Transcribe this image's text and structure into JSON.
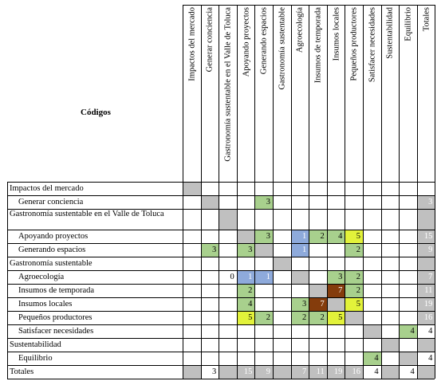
{
  "title": "Códigos",
  "columns": [
    "Impactos del mercado",
    "Generar conciencia",
    "Gastronomía sustentable en el Valle de Toluca",
    "Apoyando proyectos",
    "Generando espacios",
    "Gastronomía sustentable",
    "Agroecología",
    "Insumos de temporada",
    "Insumos locales",
    "Pequeños productores",
    "Satisfacer necesidades",
    "Sustentabilidad",
    "Equilibrio",
    "Totales"
  ],
  "rows": [
    {
      "label": "Impactos del mercado",
      "indent": false
    },
    {
      "label": "Generar conciencia",
      "indent": true
    },
    {
      "label": "Gastronomía sustentable en el Valle de Toluca",
      "indent": false
    },
    {
      "label": "Apoyando proyectos",
      "indent": true
    },
    {
      "label": "Generando espacios",
      "indent": true
    },
    {
      "label": "Gastronomía sustentable",
      "indent": false
    },
    {
      "label": "Agroecología",
      "indent": true
    },
    {
      "label": "Insumos de temporada",
      "indent": true
    },
    {
      "label": "Insumos locales",
      "indent": true
    },
    {
      "label": "Pequeños productores",
      "indent": true
    },
    {
      "label": "Satisfacer necesidades",
      "indent": true
    },
    {
      "label": "Sustentabilidad",
      "indent": false
    },
    {
      "label": "Equilibrio",
      "indent": true
    },
    {
      "label": "Totales",
      "indent": false
    }
  ],
  "colors": {
    "gray": "#c0c0c0",
    "green": "#a8d08d",
    "blue": "#8eaadb",
    "yellow": "#e2f23a",
    "brown": "#843c0c"
  },
  "cells": [
    {
      "r": 0,
      "c": 0,
      "v": "",
      "color": "gray"
    },
    {
      "r": 1,
      "c": 1,
      "v": "",
      "color": "gray"
    },
    {
      "r": 1,
      "c": 4,
      "v": "3",
      "color": "green"
    },
    {
      "r": 1,
      "c": 13,
      "v": "3",
      "color": "gray"
    },
    {
      "r": 2,
      "c": 2,
      "v": "",
      "color": "gray"
    },
    {
      "r": 2,
      "c": 13,
      "v": "",
      "color": "gray"
    },
    {
      "r": 3,
      "c": 3,
      "v": "",
      "color": "gray"
    },
    {
      "r": 3,
      "c": 4,
      "v": "3",
      "color": "green"
    },
    {
      "r": 3,
      "c": 6,
      "v": "1",
      "color": "blue"
    },
    {
      "r": 3,
      "c": 7,
      "v": "2",
      "color": "green"
    },
    {
      "r": 3,
      "c": 8,
      "v": "4",
      "color": "green"
    },
    {
      "r": 3,
      "c": 9,
      "v": "5",
      "color": "yellow"
    },
    {
      "r": 3,
      "c": 13,
      "v": "15",
      "color": "gray"
    },
    {
      "r": 4,
      "c": 1,
      "v": "3",
      "color": "green"
    },
    {
      "r": 4,
      "c": 3,
      "v": "3",
      "color": "green"
    },
    {
      "r": 4,
      "c": 4,
      "v": "",
      "color": "gray"
    },
    {
      "r": 4,
      "c": 6,
      "v": "1",
      "color": "blue"
    },
    {
      "r": 4,
      "c": 9,
      "v": "2",
      "color": "green"
    },
    {
      "r": 4,
      "c": 13,
      "v": "9",
      "color": "gray"
    },
    {
      "r": 5,
      "c": 5,
      "v": "",
      "color": "gray"
    },
    {
      "r": 5,
      "c": 13,
      "v": "",
      "color": "gray"
    },
    {
      "r": 6,
      "c": 2,
      "v": "0",
      "color": ""
    },
    {
      "r": 6,
      "c": 3,
      "v": "1",
      "color": "blue"
    },
    {
      "r": 6,
      "c": 4,
      "v": "1",
      "color": "blue"
    },
    {
      "r": 6,
      "c": 6,
      "v": "",
      "color": "gray"
    },
    {
      "r": 6,
      "c": 8,
      "v": "3",
      "color": "green"
    },
    {
      "r": 6,
      "c": 9,
      "v": "2",
      "color": "green"
    },
    {
      "r": 6,
      "c": 13,
      "v": "7",
      "color": "gray"
    },
    {
      "r": 7,
      "c": 3,
      "v": "2",
      "color": "green"
    },
    {
      "r": 7,
      "c": 7,
      "v": "",
      "color": "gray"
    },
    {
      "r": 7,
      "c": 8,
      "v": "7",
      "color": "brown"
    },
    {
      "r": 7,
      "c": 9,
      "v": "2",
      "color": "green"
    },
    {
      "r": 7,
      "c": 13,
      "v": "11",
      "color": "gray"
    },
    {
      "r": 8,
      "c": 3,
      "v": "4",
      "color": "green"
    },
    {
      "r": 8,
      "c": 6,
      "v": "3",
      "color": "green"
    },
    {
      "r": 8,
      "c": 7,
      "v": "7",
      "color": "brown"
    },
    {
      "r": 8,
      "c": 8,
      "v": "",
      "color": "gray"
    },
    {
      "r": 8,
      "c": 9,
      "v": "5",
      "color": "yellow"
    },
    {
      "r": 8,
      "c": 13,
      "v": "19",
      "color": "gray"
    },
    {
      "r": 9,
      "c": 3,
      "v": "5",
      "color": "yellow"
    },
    {
      "r": 9,
      "c": 4,
      "v": "2",
      "color": "green"
    },
    {
      "r": 9,
      "c": 6,
      "v": "2",
      "color": "green"
    },
    {
      "r": 9,
      "c": 7,
      "v": "2",
      "color": "green"
    },
    {
      "r": 9,
      "c": 8,
      "v": "5",
      "color": "yellow"
    },
    {
      "r": 9,
      "c": 9,
      "v": "",
      "color": "gray"
    },
    {
      "r": 9,
      "c": 13,
      "v": "16",
      "color": "gray"
    },
    {
      "r": 10,
      "c": 10,
      "v": "",
      "color": "gray"
    },
    {
      "r": 10,
      "c": 12,
      "v": "4",
      "color": "green"
    },
    {
      "r": 10,
      "c": 13,
      "v": "4",
      "color": ""
    },
    {
      "r": 11,
      "c": 11,
      "v": "",
      "color": "gray"
    },
    {
      "r": 11,
      "c": 13,
      "v": "",
      "color": "gray"
    },
    {
      "r": 12,
      "c": 10,
      "v": "4",
      "color": "green"
    },
    {
      "r": 12,
      "c": 12,
      "v": "",
      "color": "gray"
    },
    {
      "r": 12,
      "c": 13,
      "v": "4",
      "color": ""
    },
    {
      "r": 13,
      "c": 0,
      "v": "",
      "color": "gray"
    },
    {
      "r": 13,
      "c": 1,
      "v": "3",
      "color": ""
    },
    {
      "r": 13,
      "c": 2,
      "v": "",
      "color": "gray"
    },
    {
      "r": 13,
      "c": 3,
      "v": "15",
      "color": "gray"
    },
    {
      "r": 13,
      "c": 4,
      "v": "9",
      "color": "gray"
    },
    {
      "r": 13,
      "c": 5,
      "v": "",
      "color": "gray"
    },
    {
      "r": 13,
      "c": 6,
      "v": "7",
      "color": "gray"
    },
    {
      "r": 13,
      "c": 7,
      "v": "11",
      "color": "gray"
    },
    {
      "r": 13,
      "c": 8,
      "v": "19",
      "color": "gray"
    },
    {
      "r": 13,
      "c": 9,
      "v": "16",
      "color": "gray"
    },
    {
      "r": 13,
      "c": 10,
      "v": "4",
      "color": ""
    },
    {
      "r": 13,
      "c": 11,
      "v": "",
      "color": "gray"
    },
    {
      "r": 13,
      "c": 12,
      "v": "4",
      "color": ""
    },
    {
      "r": 13,
      "c": 13,
      "v": "",
      "color": "gray"
    }
  ]
}
